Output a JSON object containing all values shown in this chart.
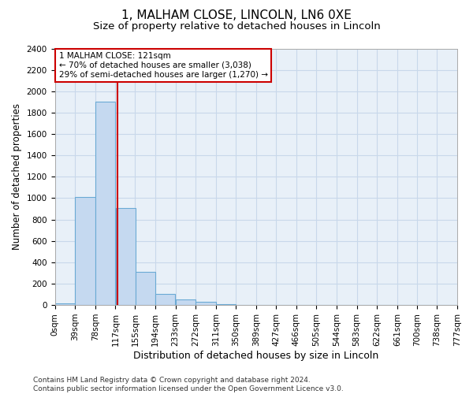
{
  "title": "1, MALHAM CLOSE, LINCOLN, LN6 0XE",
  "subtitle": "Size of property relative to detached houses in Lincoln",
  "xlabel": "Distribution of detached houses by size in Lincoln",
  "ylabel": "Number of detached properties",
  "bar_color": "#c5d9f0",
  "bar_edge_color": "#6aaad4",
  "grid_color": "#c8d8ea",
  "background_color": "#e8f0f8",
  "bin_labels": [
    "0sqm",
    "39sqm",
    "78sqm",
    "117sqm",
    "155sqm",
    "194sqm",
    "233sqm",
    "272sqm",
    "311sqm",
    "350sqm",
    "389sqm",
    "427sqm",
    "466sqm",
    "505sqm",
    "544sqm",
    "583sqm",
    "622sqm",
    "661sqm",
    "700sqm",
    "738sqm",
    "777sqm"
  ],
  "bin_edges": [
    0,
    39,
    78,
    117,
    155,
    194,
    233,
    272,
    311,
    350,
    389,
    427,
    466,
    505,
    544,
    583,
    622,
    661,
    700,
    738,
    777
  ],
  "bar_heights": [
    15,
    1010,
    1900,
    910,
    310,
    105,
    55,
    28,
    8,
    4,
    2,
    0,
    0,
    0,
    0,
    0,
    0,
    0,
    0,
    0
  ],
  "ylim": [
    0,
    2400
  ],
  "yticks": [
    0,
    200,
    400,
    600,
    800,
    1000,
    1200,
    1400,
    1600,
    1800,
    2000,
    2200,
    2400
  ],
  "property_size": 121,
  "vline_color": "#cc0000",
  "annotation_line1": "1 MALHAM CLOSE: 121sqm",
  "annotation_line2": "← 70% of detached houses are smaller (3,038)",
  "annotation_line3": "29% of semi-detached houses are larger (1,270) →",
  "annotation_box_color": "#cc0000",
  "footer_text": "Contains HM Land Registry data © Crown copyright and database right 2024.\nContains public sector information licensed under the Open Government Licence v3.0.",
  "title_fontsize": 11,
  "subtitle_fontsize": 9.5,
  "xlabel_fontsize": 9,
  "ylabel_fontsize": 8.5,
  "tick_fontsize": 7.5,
  "annotation_fontsize": 7.5,
  "footer_fontsize": 6.5
}
